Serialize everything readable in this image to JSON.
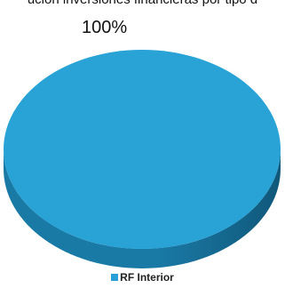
{
  "chart_data": {
    "type": "pie",
    "title": "ución inversiones financieras por tipo d",
    "categories": [
      "RF Interior"
    ],
    "values": [
      100
    ],
    "data_labels": [
      "100%"
    ],
    "legend": "bottom-center",
    "three_d": true,
    "colors": {
      "top": "#29a3d6",
      "side": "#1a7aa6",
      "side_dark": "#10587a",
      "swatch": "#2a9fd6"
    }
  }
}
